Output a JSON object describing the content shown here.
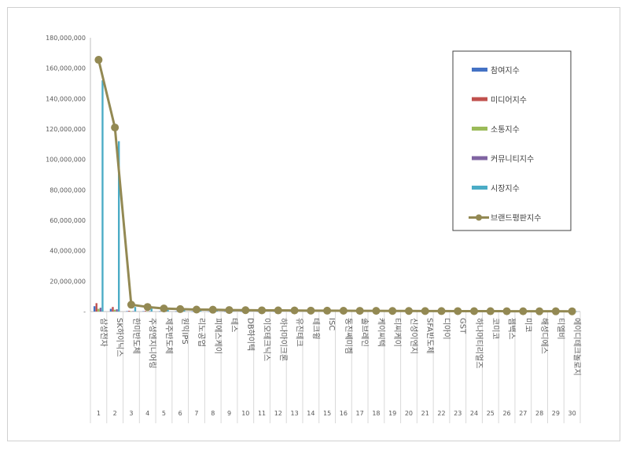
{
  "chart_data": {
    "type": "bar",
    "title": "",
    "xlabel": "",
    "ylabel": "",
    "ylim": [
      0,
      180000000
    ],
    "y_ticks": [
      "180,000,000",
      "160,000,000",
      "140,000,000",
      "120,000,000",
      "100,000,000",
      "80,000,000",
      "60,000,000",
      "40,000,000",
      "20,000,000",
      "-"
    ],
    "gridlines": false,
    "legend_position": "top-right",
    "categories": [
      "삼성전자",
      "SK하이닉스",
      "한미반도체",
      "주성엔지니어링",
      "제주반도체",
      "원익IPS",
      "리노공업",
      "피에스케이",
      "테스",
      "DB하이텍",
      "이오테크닉스",
      "하나마이크론",
      "유진테크",
      "테크윙",
      "ISC",
      "동진쎄미켐",
      "솔브레인",
      "케이씨텍",
      "티씨케이",
      "신성이엔지",
      "SFA반도체",
      "디아이",
      "GST",
      "하나머티리얼즈",
      "코미코",
      "젬백스",
      "미코",
      "해성디에스",
      "티엘비",
      "에이디테크놀로지"
    ],
    "ranks": [
      "1",
      "2",
      "3",
      "4",
      "5",
      "6",
      "7",
      "8",
      "9",
      "10",
      "11",
      "12",
      "13",
      "14",
      "15",
      "16",
      "17",
      "18",
      "19",
      "20",
      "21",
      "22",
      "23",
      "24",
      "25",
      "26",
      "27",
      "28",
      "29",
      "30"
    ],
    "series": [
      {
        "name": "참여지수",
        "kind": "bar",
        "color": "#4472C4",
        "values": [
          3500000,
          1800000,
          300000,
          250000,
          200000,
          150000,
          120000,
          110000,
          100000,
          90000,
          80000,
          80000,
          70000,
          60000,
          60000,
          50000,
          50000,
          40000,
          40000,
          40000,
          30000,
          30000,
          30000,
          30000,
          20000,
          20000,
          20000,
          20000,
          20000,
          10000
        ]
      },
      {
        "name": "미디어지수",
        "kind": "bar",
        "color": "#C0504D",
        "values": [
          5500000,
          3000000,
          500000,
          400000,
          300000,
          250000,
          200000,
          180000,
          160000,
          150000,
          130000,
          120000,
          110000,
          100000,
          90000,
          80000,
          80000,
          70000,
          60000,
          60000,
          50000,
          50000,
          50000,
          40000,
          40000,
          30000,
          30000,
          30000,
          30000,
          20000
        ]
      },
      {
        "name": "소통지수",
        "kind": "bar",
        "color": "#9BBB59",
        "values": [
          1800000,
          1200000,
          200000,
          150000,
          120000,
          100000,
          90000,
          80000,
          70000,
          60000,
          50000,
          50000,
          40000,
          40000,
          30000,
          30000,
          30000,
          20000,
          20000,
          20000,
          20000,
          20000,
          10000,
          10000,
          10000,
          10000,
          10000,
          10000,
          10000,
          10000
        ]
      },
      {
        "name": "커뮤니티지수",
        "kind": "bar",
        "color": "#8064A2",
        "values": [
          2500000,
          1500000,
          300000,
          200000,
          150000,
          120000,
          100000,
          90000,
          80000,
          70000,
          60000,
          60000,
          50000,
          50000,
          40000,
          40000,
          30000,
          30000,
          30000,
          20000,
          20000,
          20000,
          20000,
          20000,
          10000,
          10000,
          10000,
          10000,
          10000,
          10000
        ]
      },
      {
        "name": "시장지수",
        "kind": "bar",
        "color": "#4BACC6",
        "values": [
          152000000,
          112000000,
          3000000,
          2000000,
          1200000,
          1000000,
          800000,
          700000,
          600000,
          500000,
          450000,
          400000,
          350000,
          300000,
          280000,
          260000,
          240000,
          220000,
          200000,
          180000,
          160000,
          150000,
          140000,
          130000,
          120000,
          110000,
          100000,
          90000,
          80000,
          70000
        ]
      },
      {
        "name": "브랜드평판지수",
        "kind": "line",
        "color": "#938953",
        "values": [
          165500000,
          121000000,
          4500000,
          3000000,
          2000000,
          1600000,
          1300000,
          1200000,
          1000000,
          900000,
          800000,
          750000,
          700000,
          600000,
          560000,
          520000,
          480000,
          450000,
          400000,
          380000,
          330000,
          300000,
          280000,
          260000,
          240000,
          220000,
          200000,
          180000,
          170000,
          150000
        ]
      }
    ]
  }
}
